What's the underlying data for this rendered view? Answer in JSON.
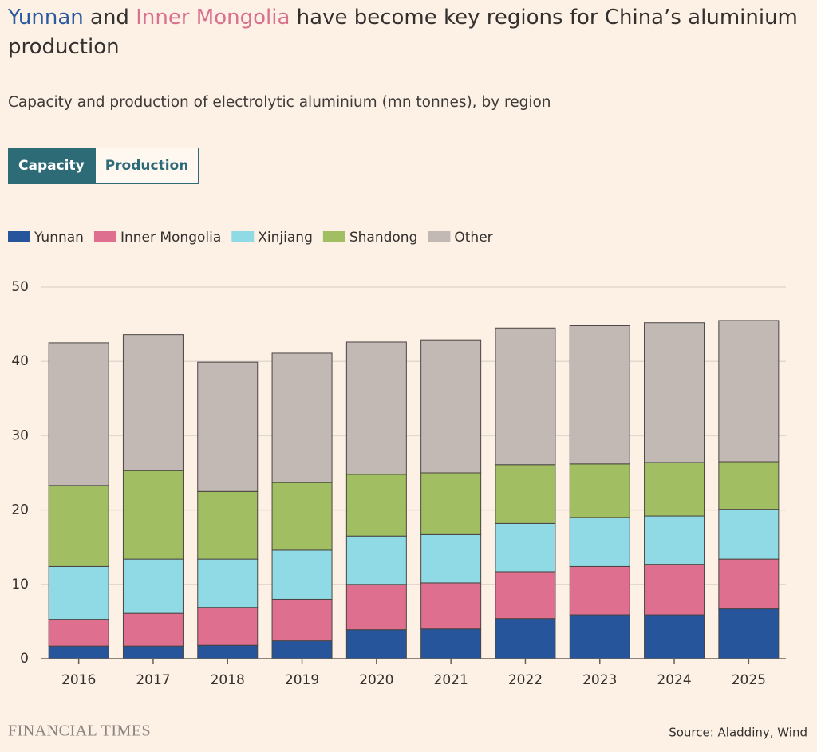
{
  "chart_data": {
    "type": "stacked-bar",
    "title": [
      {
        "text": "Yunnan",
        "color": "#2a5aa0"
      },
      {
        "text": "and"
      },
      {
        "text": "Inner Mongolia",
        "color": "#d9708f"
      },
      {
        "text": "have become key regions for China’s aluminium production"
      }
    ],
    "subtitle": "Capacity and production of electrolytic aluminium (mn tonnes), by region",
    "toggle": [
      "Capacity",
      "Production"
    ],
    "categories": [
      "2016",
      "2017",
      "2018",
      "2019",
      "2020",
      "2021",
      "2022",
      "2023",
      "2024",
      "2025"
    ],
    "series": [
      {
        "name": "Yunnan",
        "color": "#26559b",
        "values": [
          1.7,
          1.7,
          1.8,
          2.4,
          3.9,
          4.0,
          5.4,
          5.9,
          5.9,
          6.7
        ]
      },
      {
        "name": "Inner Mongolia",
        "color": "#de6f8f",
        "values": [
          3.6,
          4.4,
          5.1,
          5.6,
          6.1,
          6.2,
          6.3,
          6.5,
          6.8,
          6.7
        ]
      },
      {
        "name": "Xinjiang",
        "color": "#90dae6",
        "values": [
          7.1,
          7.3,
          6.5,
          6.6,
          6.5,
          6.5,
          6.5,
          6.6,
          6.5,
          6.7
        ]
      },
      {
        "name": "Shandong",
        "color": "#a1be62",
        "values": [
          10.9,
          11.9,
          9.1,
          9.1,
          8.3,
          8.3,
          7.9,
          7.2,
          7.2,
          6.4
        ]
      },
      {
        "name": "Other",
        "color": "#c2b9b4",
        "values": [
          19.2,
          18.3,
          17.4,
          17.4,
          17.8,
          17.9,
          18.4,
          18.6,
          18.8,
          19.0
        ]
      }
    ],
    "ylim": [
      0,
      50
    ],
    "yticks": [
      0,
      10,
      20,
      30,
      40,
      50
    ],
    "grid": true,
    "publisher": "FINANCIAL TIMES",
    "source": "Source: Aladdiny, Wind"
  }
}
